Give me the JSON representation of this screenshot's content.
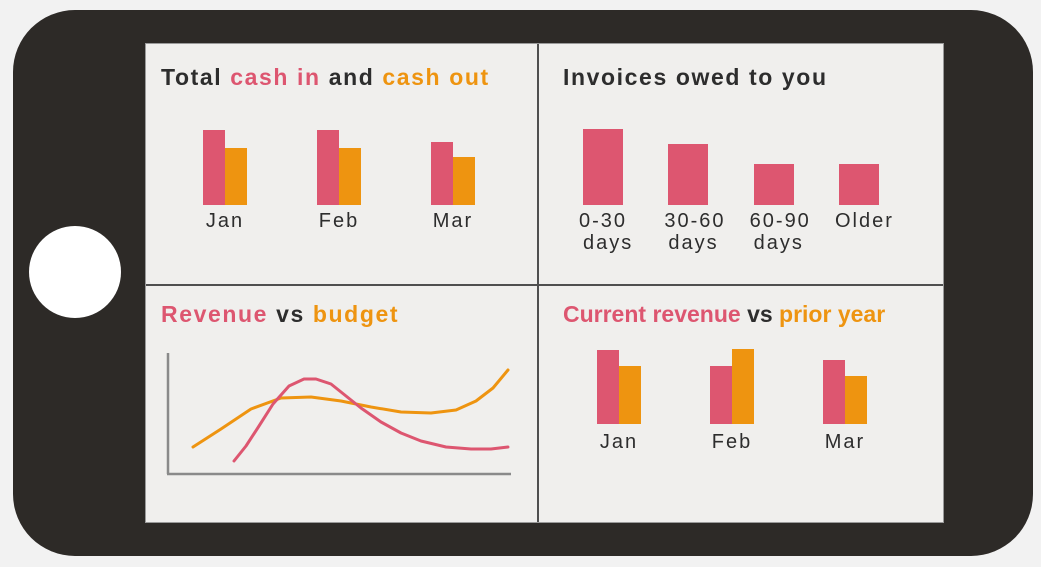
{
  "device": {
    "kind": "tablet mockup",
    "home_button": "home"
  },
  "colors": {
    "pink": "#dd5670",
    "orange": "#ee9410",
    "dark_text": "#2d2d2d",
    "frame": "#2d2a27",
    "screen_bg": "#f0efed",
    "outer_bg": "#f2f2f2",
    "divider": "#4f4f4f",
    "axis": "#8a8a8a"
  },
  "panels": [
    {
      "name": "total-cash-in-and-cash-out",
      "title_parts": [
        {
          "text": "Total ",
          "color": "dark"
        },
        {
          "text": "cash in",
          "color": "pink"
        },
        {
          "text": " and ",
          "color": "dark"
        },
        {
          "text": "cash out",
          "color": "orange"
        }
      ]
    },
    {
      "name": "invoices-owed-to-you",
      "title_parts": [
        {
          "text": "Invoices owed to you",
          "color": "dark"
        }
      ]
    },
    {
      "name": "revenue-vs-budget",
      "title_parts": [
        {
          "text": "Revenue ",
          "color": "pink"
        },
        {
          "text": "vs",
          "color": "dark"
        },
        {
          "text": " budget",
          "color": "orange"
        }
      ]
    },
    {
      "name": "current-revenue-vs-prior-year",
      "title_parts": [
        {
          "text": "Current revenue ",
          "color": "pink"
        },
        {
          "text": "vs",
          "color": "dark"
        },
        {
          "text": " prior year",
          "color": "orange"
        }
      ]
    }
  ],
  "chart_data": [
    {
      "type": "bar",
      "title": "Total cash in and cash out",
      "categories": [
        "Jan",
        "Feb",
        "Mar"
      ],
      "units": "relative bar heights (no value axis shown)",
      "legend": "none (encoded by title colors)",
      "series": [
        {
          "name": "cash in",
          "color": "#dd5670",
          "values": [
            75,
            75,
            63
          ]
        },
        {
          "name": "cash out",
          "color": "#ee9410",
          "values": [
            57,
            57,
            48
          ]
        }
      ]
    },
    {
      "type": "bar",
      "title": "Invoices owed to you",
      "categories": [
        "0-30\ndays",
        "30-60\ndays",
        "60-90\ndays",
        "Older"
      ],
      "units": "relative bar heights (no value axis shown)",
      "series": [
        {
          "name": "invoices owed",
          "color": "#dd5670",
          "values": [
            76,
            61,
            41,
            41
          ]
        }
      ]
    },
    {
      "type": "line",
      "title": "Revenue vs budget",
      "units": "relative curve points, svg px, y down, plot 360x140, axes unlabeled",
      "legend": "none (encoded by title colors)",
      "axes": {
        "x_axis_visible": true,
        "y_axis_visible": true,
        "ticks": false
      },
      "series": [
        {
          "name": "budget",
          "color": "#ee9410",
          "points": [
            [
              32,
              101
            ],
            [
              60,
              83
            ],
            [
              90,
              63
            ],
            [
              120,
              52
            ],
            [
              150,
              51
            ],
            [
              180,
              55
            ],
            [
              210,
              61
            ],
            [
              240,
              66
            ],
            [
              270,
              67
            ],
            [
              295,
              64
            ],
            [
              315,
              55
            ],
            [
              332,
              42
            ],
            [
              347,
              24
            ]
          ]
        },
        {
          "name": "revenue",
          "color": "#dd5670",
          "points": [
            [
              73,
              115
            ],
            [
              85,
              100
            ],
            [
              98,
              80
            ],
            [
              112,
              58
            ],
            [
              128,
              40
            ],
            [
              143,
              33
            ],
            [
              155,
              33
            ],
            [
              170,
              38
            ],
            [
              185,
              50
            ],
            [
              200,
              62
            ],
            [
              220,
              76
            ],
            [
              240,
              87
            ],
            [
              260,
              95
            ],
            [
              285,
              101
            ],
            [
              310,
              103
            ],
            [
              330,
              103
            ],
            [
              347,
              101
            ]
          ]
        }
      ]
    },
    {
      "type": "bar",
      "title": "Current revenue vs prior year",
      "categories": [
        "Jan",
        "Feb",
        "Mar"
      ],
      "units": "relative bar heights (no value axis shown)",
      "legend": "none (encoded by title colors)",
      "series": [
        {
          "name": "current revenue",
          "color": "#dd5670",
          "values": [
            74,
            58,
            64
          ]
        },
        {
          "name": "prior year",
          "color": "#ee9410",
          "values": [
            58,
            75,
            48
          ]
        }
      ]
    }
  ]
}
